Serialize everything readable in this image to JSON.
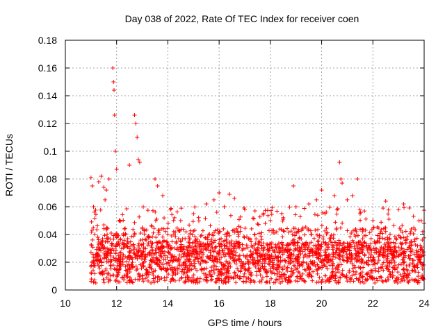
{
  "chart_data": {
    "type": "scatter",
    "title": "Day 038 of 2022, Rate Of TEC Index for receiver coen",
    "xlabel": "GPS time / hours",
    "ylabel": "ROTI / TECUs",
    "xlim": [
      10,
      24
    ],
    "ylim": [
      0,
      0.18
    ],
    "x_ticks": [
      "10",
      "12",
      "14",
      "16",
      "18",
      "20",
      "22",
      "24"
    ],
    "y_ticks": [
      "0",
      "0.02",
      "0.04",
      "0.06",
      "0.08",
      "0.1",
      "0.12",
      "0.14",
      "0.16",
      "0.18"
    ],
    "grid": true,
    "marker": "+",
    "color": "#ff0000",
    "series": [
      {
        "x": [
          11.0,
          11.05,
          11.1,
          11.3,
          11.4,
          11.5,
          11.55,
          11.6,
          11.7,
          11.85,
          11.88,
          11.9,
          11.92,
          11.95,
          12.0,
          12.1,
          12.5,
          12.7,
          12.75,
          12.8,
          12.85,
          12.9,
          13.0,
          13.5,
          13.6,
          13.8,
          14.0,
          14.5,
          15.0,
          15.5,
          15.8,
          16.0,
          16.2,
          16.4,
          16.6,
          17.0,
          17.4,
          17.8,
          18.0,
          18.5,
          18.9,
          19.0,
          19.5,
          19.8,
          20.0,
          20.5,
          20.7,
          20.75,
          20.8,
          21.0,
          21.2,
          21.4,
          21.5,
          22.0,
          22.5,
          23.0,
          23.2,
          23.5,
          23.8,
          24.0
        ],
        "y": [
          0.081,
          0.075,
          0.06,
          0.078,
          0.082,
          0.074,
          0.065,
          0.072,
          0.08,
          0.16,
          0.15,
          0.144,
          0.126,
          0.1,
          0.087,
          0.05,
          0.09,
          0.126,
          0.12,
          0.11,
          0.094,
          0.092,
          0.045,
          0.08,
          0.075,
          0.068,
          0.04,
          0.05,
          0.055,
          0.062,
          0.065,
          0.07,
          0.06,
          0.069,
          0.066,
          0.058,
          0.057,
          0.048,
          0.05,
          0.051,
          0.075,
          0.06,
          0.062,
          0.065,
          0.072,
          0.068,
          0.092,
          0.08,
          0.077,
          0.065,
          0.068,
          0.08,
          0.055,
          0.05,
          0.064,
          0.058,
          0.062,
          0.044,
          0.05,
          0.048
        ]
      }
    ]
  }
}
